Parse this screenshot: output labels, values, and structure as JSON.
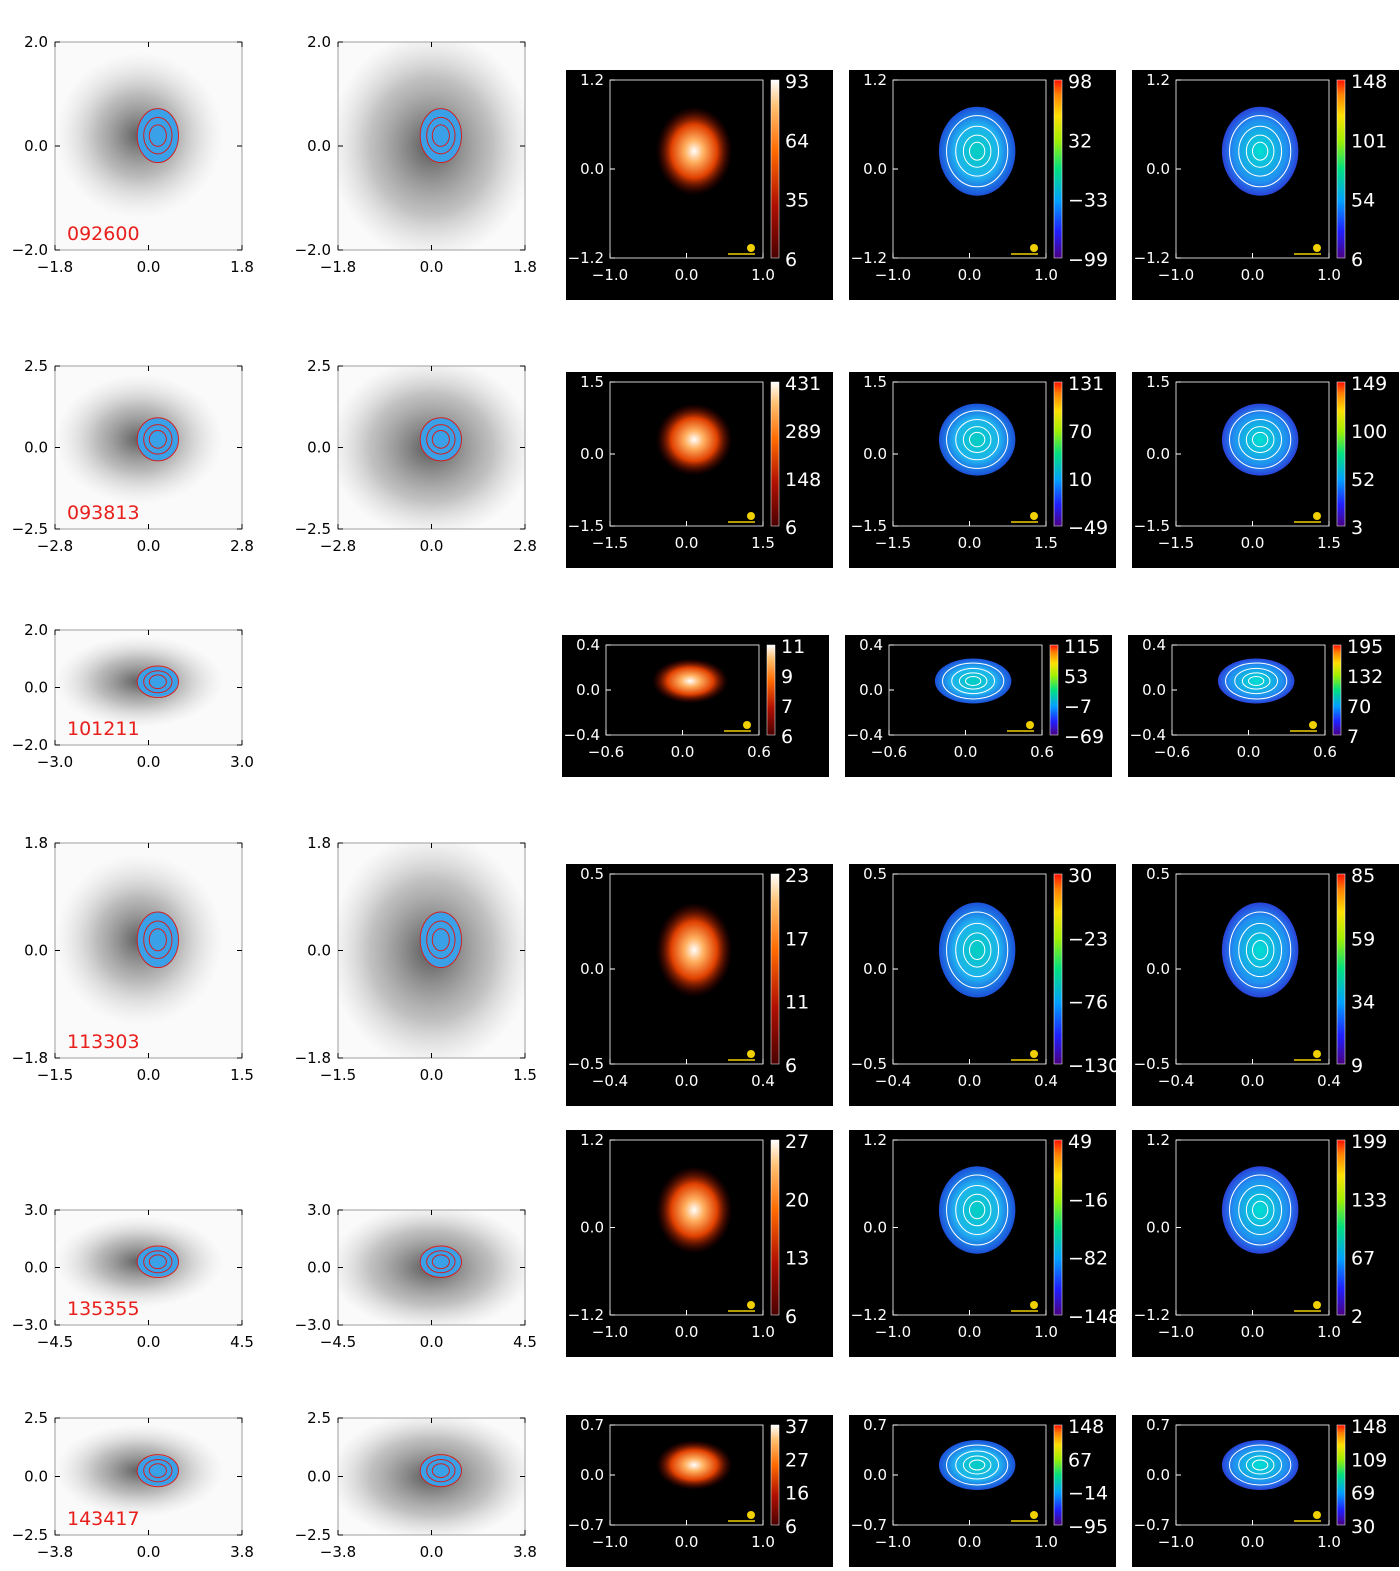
{
  "rows": [
    {
      "id": "092600",
      "optical": {
        "y": [
          "2.0",
          "0.0",
          "−2.0"
        ],
        "x": [
          "−1.8",
          "0.0",
          "1.8"
        ]
      },
      "ir": {
        "y": [
          "2.0",
          "0.0",
          "−2.0"
        ],
        "x": [
          "−1.8",
          "0.0",
          "1.8"
        ]
      },
      "maps": {
        "y": [
          "1.2",
          "0.0",
          "−1.2"
        ],
        "x": [
          "−1.0",
          "0.0",
          "1.0"
        ],
        "flux": [
          "93",
          "64",
          "35",
          "6"
        ],
        "vel": [
          "98",
          "32",
          "−33",
          "−99"
        ],
        "disp": [
          "148",
          "101",
          "54",
          "6"
        ]
      }
    },
    {
      "id": "093813",
      "optical": {
        "y": [
          "2.5",
          "0.0",
          "−2.5"
        ],
        "x": [
          "−2.8",
          "0.0",
          "2.8"
        ]
      },
      "ir": {
        "y": [
          "2.5",
          "0.0",
          "−2.5"
        ],
        "x": [
          "−2.8",
          "0.0",
          "2.8"
        ]
      },
      "maps": {
        "y": [
          "1.5",
          "0.0",
          "−1.5"
        ],
        "x": [
          "−1.5",
          "0.0",
          "1.5"
        ],
        "flux": [
          "431",
          "289",
          "148",
          "6"
        ],
        "vel": [
          "131",
          "70",
          "10",
          "−49"
        ],
        "disp": [
          "149",
          "100",
          "52",
          "3"
        ]
      }
    },
    {
      "id": "101211",
      "optical": {
        "y": [
          "2.0",
          "0.0",
          "−2.0"
        ],
        "x": [
          "−3.0",
          "0.0",
          "3.0"
        ]
      },
      "ir": null,
      "maps": {
        "y": [
          "0.4",
          "0.0",
          "−0.4"
        ],
        "x": [
          "−0.6",
          "0.0",
          "0.6"
        ],
        "flux": [
          "11",
          "9",
          "7",
          "6"
        ],
        "vel": [
          "115",
          "53",
          "−7",
          "−69"
        ],
        "disp": [
          "195",
          "132",
          "70",
          "7"
        ]
      }
    },
    {
      "id": "113303",
      "optical": {
        "y": [
          "1.8",
          "0.0",
          "−1.8"
        ],
        "x": [
          "−1.5",
          "0.0",
          "1.5"
        ]
      },
      "ir": {
        "y": [
          "1.8",
          "0.0",
          "−1.8"
        ],
        "x": [
          "−1.5",
          "0.0",
          "1.5"
        ]
      },
      "maps": {
        "y": [
          "0.5",
          "0.0",
          "−0.5"
        ],
        "x": [
          "−0.4",
          "0.0",
          "0.4"
        ],
        "flux": [
          "23",
          "17",
          "11",
          "6"
        ],
        "vel": [
          "30",
          "−23",
          "−76",
          "−130"
        ],
        "disp": [
          "85",
          "59",
          "34",
          "9"
        ]
      }
    },
    {
      "id": "135355",
      "optical": {
        "y": [
          "3.0",
          "0.0",
          "−3.0"
        ],
        "x": [
          "−4.5",
          "0.0",
          "4.5"
        ]
      },
      "ir": {
        "y": [
          "3.0",
          "0.0",
          "−3.0"
        ],
        "x": [
          "−4.5",
          "0.0",
          "4.5"
        ]
      },
      "maps": {
        "y": [
          "1.2",
          "0.0",
          "−1.2"
        ],
        "x": [
          "−1.0",
          "0.0",
          "1.0"
        ],
        "flux": [
          "27",
          "20",
          "13",
          "6"
        ],
        "vel": [
          "49",
          "−16",
          "−82",
          "−148"
        ],
        "disp": [
          "199",
          "133",
          "67",
          "2"
        ]
      }
    },
    {
      "id": "143417",
      "optical": {
        "y": [
          "2.5",
          "0.0",
          "−2.5"
        ],
        "x": [
          "−3.8",
          "0.0",
          "3.8"
        ]
      },
      "ir": {
        "y": [
          "2.5",
          "0.0",
          "−2.5"
        ],
        "x": [
          "−3.8",
          "0.0",
          "3.8"
        ]
      },
      "maps": {
        "y": [
          "0.7",
          "0.0",
          "−0.7"
        ],
        "x": [
          "−1.0",
          "0.0",
          "1.0"
        ],
        "flux": [
          "37",
          "27",
          "16",
          "6"
        ],
        "vel": [
          "148",
          "67",
          "−14",
          "−95"
        ],
        "disp": [
          "148",
          "109",
          "69",
          "30"
        ]
      }
    }
  ],
  "colors": {
    "label_red": "#e8201c",
    "contour_red": "#d42020",
    "overlay_blue": "#3aa0e8",
    "beam_yellow": "#f0d000",
    "map_bg": "#000000"
  }
}
